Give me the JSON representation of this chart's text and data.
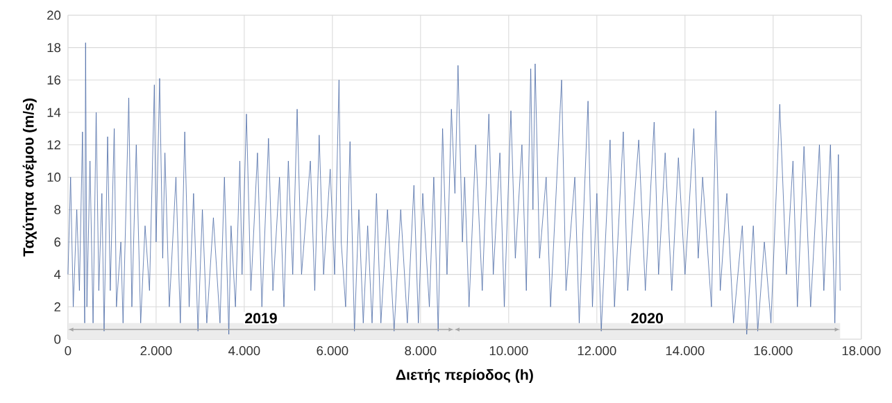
{
  "chart_data": {
    "type": "line",
    "xlabel": "Διετής περίοδος (h)",
    "ylabel": "Ταχύτητα ανέμου (m/s)",
    "xlim": [
      0,
      18000
    ],
    "ylim": [
      0,
      20
    ],
    "xticks": [
      0,
      {
        "value": 2000,
        "label": "2.000"
      },
      {
        "value": 4000,
        "label": "4.000"
      },
      {
        "value": 6000,
        "label": "6.000"
      },
      {
        "value": 8000,
        "label": "8.000"
      },
      {
        "value": 10000,
        "label": "10.000"
      },
      {
        "value": 12000,
        "label": "12.000"
      },
      {
        "value": 14000,
        "label": "14.000"
      },
      {
        "value": 16000,
        "label": "16.000"
      },
      {
        "value": 18000,
        "label": "18.000"
      }
    ],
    "yticks": [
      0,
      2,
      4,
      6,
      8,
      10,
      12,
      14,
      16,
      18,
      20
    ],
    "grid": true,
    "marker": "none",
    "line_style": "solid",
    "bands": [
      {
        "axis": "x",
        "from": 0,
        "to": 8760,
        "label": "2019",
        "color": "#ececec"
      },
      {
        "axis": "x",
        "from": 8760,
        "to": 17520,
        "label": "2020",
        "color": "#ececec"
      }
    ],
    "series": [
      {
        "color": "#4a69a6",
        "x": [
          0,
          60,
          120,
          200,
          260,
          330,
          380,
          400,
          430,
          500,
          570,
          640,
          700,
          770,
          820,
          900,
          960,
          1050,
          1100,
          1200,
          1250,
          1380,
          1450,
          1550,
          1650,
          1750,
          1850,
          1960,
          2000,
          2080,
          2150,
          2200,
          2300,
          2450,
          2550,
          2650,
          2750,
          2850,
          2950,
          3050,
          3150,
          3300,
          3450,
          3550,
          3650,
          3700,
          3800,
          3900,
          3950,
          4050,
          4150,
          4300,
          4400,
          4550,
          4650,
          4800,
          4900,
          5000,
          5100,
          5200,
          5300,
          5500,
          5600,
          5700,
          5800,
          5950,
          6050,
          6150,
          6200,
          6300,
          6400,
          6500,
          6600,
          6700,
          6800,
          6900,
          7000,
          7100,
          7250,
          7400,
          7550,
          7700,
          7850,
          7950,
          8050,
          8200,
          8300,
          8400,
          8500,
          8600,
          8700,
          8780,
          8850,
          8950,
          9000,
          9100,
          9250,
          9400,
          9550,
          9650,
          9800,
          9900,
          10050,
          10150,
          10300,
          10400,
          10500,
          10550,
          10600,
          10700,
          10850,
          10950,
          11200,
          11300,
          11500,
          11600,
          11800,
          11900,
          12000,
          12100,
          12300,
          12400,
          12600,
          12700,
          12950,
          13100,
          13300,
          13400,
          13550,
          13700,
          13850,
          14000,
          14200,
          14300,
          14400,
          14600,
          14700,
          14800,
          14950,
          15100,
          15300,
          15400,
          15550,
          15650,
          15800,
          15950,
          16100,
          16150,
          16300,
          16450,
          16550,
          16700,
          16850,
          17050,
          17150,
          17300,
          17400,
          17480,
          17520
        ],
        "values": [
          4,
          10,
          2,
          8,
          3,
          12.8,
          1,
          18.3,
          2,
          11,
          1,
          14,
          3,
          9,
          0.5,
          12.5,
          3,
          13,
          2,
          6,
          1,
          14.9,
          2,
          12,
          1,
          7,
          3,
          15.7,
          6,
          16.1,
          5,
          11.5,
          2,
          10,
          1,
          12.8,
          2,
          9,
          0.5,
          8,
          1,
          7.5,
          1,
          10,
          0.3,
          7,
          2,
          11,
          4,
          13.9,
          3,
          11.5,
          2,
          12.4,
          3,
          10,
          2,
          11,
          4,
          14.2,
          4,
          11,
          3,
          12.6,
          4,
          10.5,
          4,
          16,
          6,
          2,
          12.2,
          0.5,
          8,
          1,
          7,
          1,
          9,
          1,
          8,
          0.5,
          8,
          1,
          9.5,
          1,
          9,
          2,
          10,
          0.5,
          13,
          4,
          14.2,
          9,
          16.9,
          6,
          10,
          2,
          12,
          3,
          13.9,
          4,
          11.5,
          2,
          14.1,
          5,
          12,
          3,
          16.7,
          8,
          17,
          5,
          10,
          2,
          16,
          3,
          10,
          1,
          14.7,
          2,
          9,
          0.5,
          12.3,
          2,
          12.8,
          3,
          12.3,
          3,
          13.4,
          4,
          11.5,
          3,
          11.2,
          4,
          13,
          5,
          10,
          2,
          14.1,
          3,
          9,
          1,
          7,
          0.3,
          7,
          0.5,
          6,
          1,
          11,
          14.5,
          4,
          11,
          2,
          11.9,
          2,
          12,
          3,
          12,
          1,
          11.4,
          3
        ]
      }
    ]
  }
}
